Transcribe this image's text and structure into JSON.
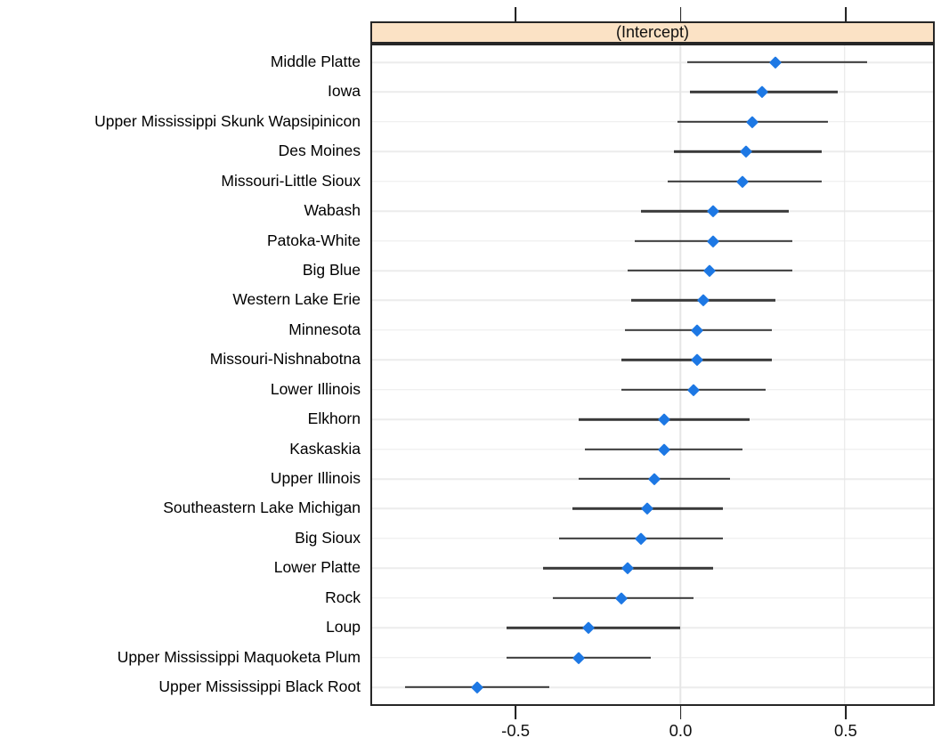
{
  "chart_data": {
    "type": "dotplot",
    "strip_label": "(Intercept)",
    "title": "",
    "xlabel": "",
    "ylabel": "",
    "xlim": [
      -0.94,
      0.77
    ],
    "x_ticks": {
      "values": [
        -0.5,
        0.0,
        0.5
      ],
      "labels": [
        "-0.5",
        "0.0",
        "0.5"
      ]
    },
    "v_gridlines": [
      0.0,
      0.5
    ],
    "grid": "horizontal-per-row",
    "legend": "none",
    "colors": {
      "point": "#1d78e4",
      "interval_line": "#3a3a3a",
      "strip_fill": "#fbe2c5",
      "panel_border": "#262626",
      "gridline": "#ececec"
    },
    "points": [
      {
        "label": "Middle Platte",
        "value": 0.29,
        "ci_low": 0.02,
        "ci_high": 0.57
      },
      {
        "label": "Iowa",
        "value": 0.25,
        "ci_low": 0.03,
        "ci_high": 0.48
      },
      {
        "label": "Upper Mississippi Skunk Wapsipinicon",
        "value": 0.22,
        "ci_low": -0.01,
        "ci_high": 0.45
      },
      {
        "label": "Des Moines",
        "value": 0.2,
        "ci_low": -0.02,
        "ci_high": 0.43
      },
      {
        "label": "Missouri-Little Sioux",
        "value": 0.19,
        "ci_low": -0.04,
        "ci_high": 0.43
      },
      {
        "label": "Wabash",
        "value": 0.1,
        "ci_low": -0.12,
        "ci_high": 0.33
      },
      {
        "label": "Patoka-White",
        "value": 0.1,
        "ci_low": -0.14,
        "ci_high": 0.34
      },
      {
        "label": "Big Blue",
        "value": 0.09,
        "ci_low": -0.16,
        "ci_high": 0.34
      },
      {
        "label": "Western Lake Erie",
        "value": 0.07,
        "ci_low": -0.15,
        "ci_high": 0.29
      },
      {
        "label": "Minnesota",
        "value": 0.05,
        "ci_low": -0.17,
        "ci_high": 0.28
      },
      {
        "label": "Missouri-Nishnabotna",
        "value": 0.05,
        "ci_low": -0.18,
        "ci_high": 0.28
      },
      {
        "label": "Lower Illinois",
        "value": 0.04,
        "ci_low": -0.18,
        "ci_high": 0.26
      },
      {
        "label": "Elkhorn",
        "value": -0.05,
        "ci_low": -0.31,
        "ci_high": 0.21
      },
      {
        "label": "Kaskaskia",
        "value": -0.05,
        "ci_low": -0.29,
        "ci_high": 0.19
      },
      {
        "label": "Upper Illinois",
        "value": -0.08,
        "ci_low": -0.31,
        "ci_high": 0.15
      },
      {
        "label": "Southeastern Lake Michigan",
        "value": -0.1,
        "ci_low": -0.33,
        "ci_high": 0.13
      },
      {
        "label": "Big Sioux",
        "value": -0.12,
        "ci_low": -0.37,
        "ci_high": 0.13
      },
      {
        "label": "Lower Platte",
        "value": -0.16,
        "ci_low": -0.42,
        "ci_high": 0.1
      },
      {
        "label": "Rock",
        "value": -0.18,
        "ci_low": -0.39,
        "ci_high": 0.04
      },
      {
        "label": "Loup",
        "value": -0.28,
        "ci_low": -0.53,
        "ci_high": 0.0
      },
      {
        "label": "Upper Mississippi Maquoketa Plum",
        "value": -0.31,
        "ci_low": -0.53,
        "ci_high": -0.09
      },
      {
        "label": "Upper Mississippi Black Root",
        "value": -0.62,
        "ci_low": -0.84,
        "ci_high": -0.4
      }
    ]
  }
}
